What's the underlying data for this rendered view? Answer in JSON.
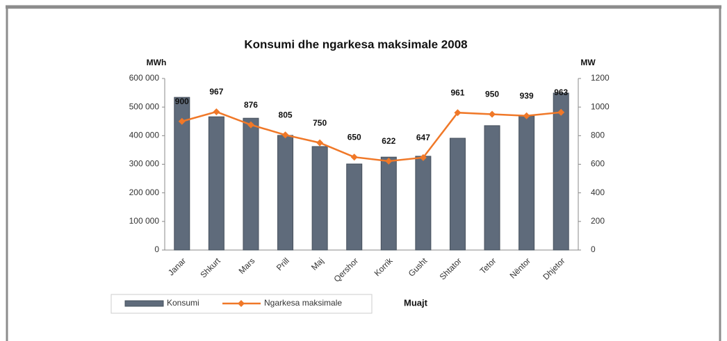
{
  "chart_data": {
    "type": "bar",
    "title": "Konsumi dhe ngarkesa maksimale 2008",
    "y_label": "MWh",
    "y2_label": "MW",
    "x_label": "Muajt",
    "categories": [
      "Janar",
      "Shkurt",
      "Mars",
      "Prill",
      "Maj",
      "Qershor",
      "Korrik",
      "Gusht",
      "Shtator",
      "Tetor",
      "Nëntor",
      "Dhjetor"
    ],
    "series": [
      {
        "name": "Konsumi",
        "type": "bar",
        "color": "#5f6b7b",
        "values": [
          534000,
          466000,
          461000,
          401000,
          362000,
          301000,
          325000,
          328000,
          391000,
          435000,
          469000,
          549000
        ]
      },
      {
        "name": "Ngarkesa maksimale",
        "type": "line",
        "axis": "y2",
        "color": "#f07828",
        "values": [
          900,
          967,
          876,
          805,
          750,
          650,
          622,
          647,
          961,
          950,
          939,
          963
        ]
      }
    ],
    "ylim": [
      0,
      600000
    ],
    "yticks": [
      {
        "value": 0,
        "label": "0"
      },
      {
        "value": 100000,
        "label": "100 000"
      },
      {
        "value": 200000,
        "label": "200 000"
      },
      {
        "value": 300000,
        "label": "300 000"
      },
      {
        "value": 400000,
        "label": "400 000"
      },
      {
        "value": 500000,
        "label": "500 000"
      },
      {
        "value": 600000,
        "label": "600 000"
      }
    ],
    "y2lim": [
      0,
      1200
    ],
    "y2ticks": [
      0,
      200,
      400,
      600,
      800,
      1000,
      1200
    ],
    "legend": "bottom-left"
  }
}
